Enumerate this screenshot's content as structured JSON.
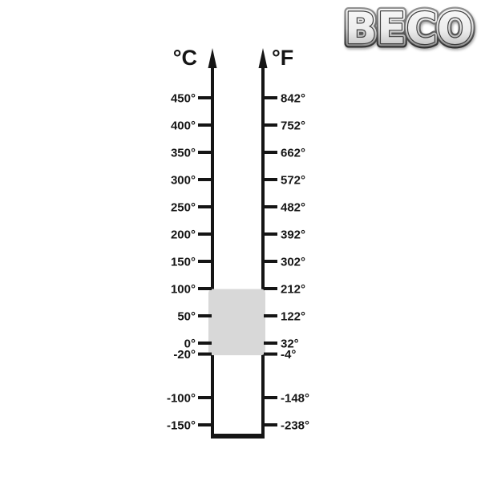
{
  "page": {
    "background_color": "#ffffff"
  },
  "logo": {
    "text": "BECO",
    "style": "chrome-metallic-outline"
  },
  "scale": {
    "celsius_header": "°C",
    "fahrenheit_header": "°F",
    "line_color": "#151515",
    "highlight_color": "#d8d8d8",
    "highlight_range_celsius": [
      100,
      -20
    ],
    "ticks": [
      {
        "c_value": 450,
        "c_label": "450°",
        "f_label": "842°"
      },
      {
        "c_value": 400,
        "c_label": "400°",
        "f_label": "752°"
      },
      {
        "c_value": 350,
        "c_label": "350°",
        "f_label": "662°"
      },
      {
        "c_value": 300,
        "c_label": "300°",
        "f_label": "572°"
      },
      {
        "c_value": 250,
        "c_label": "250°",
        "f_label": "482°"
      },
      {
        "c_value": 200,
        "c_label": "200°",
        "f_label": "392°"
      },
      {
        "c_value": 150,
        "c_label": "150°",
        "f_label": "302°"
      },
      {
        "c_value": 100,
        "c_label": "100°",
        "f_label": "212°"
      },
      {
        "c_value": 50,
        "c_label": "50°",
        "f_label": "122°"
      },
      {
        "c_value": 0,
        "c_label": "0°",
        "f_label": "32°"
      },
      {
        "c_value": -20,
        "c_label": "-20°",
        "f_label": "-4°"
      },
      {
        "c_value": -100,
        "c_label": "-100°",
        "f_label": "-148°"
      },
      {
        "c_value": -150,
        "c_label": "-150°",
        "f_label": "-238°"
      }
    ]
  }
}
